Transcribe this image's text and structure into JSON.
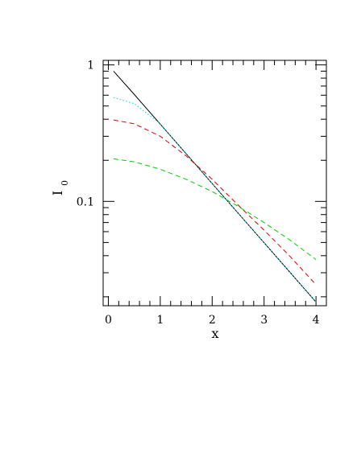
{
  "chart_data": {
    "type": "line",
    "title": "",
    "xlabel": "x",
    "ylabel": "I",
    "ylabel_subscript": "0",
    "xlim": [
      -0.1,
      4.2
    ],
    "ylim": [
      0.0172,
      1.08
    ],
    "yscale": "log",
    "grid": false,
    "x_ticks": [
      0,
      1,
      2,
      3,
      4
    ],
    "x_tick_labels": [
      "0",
      "1",
      "2",
      "3",
      "4"
    ],
    "y_tick_labels_shown": [
      {
        "value": 1,
        "label": "1"
      },
      {
        "value": 0.1,
        "label": "0.1"
      }
    ],
    "series": [
      {
        "color": "#000000",
        "style": "solid",
        "x": [
          0.1,
          0.5,
          1.0,
          1.5,
          2.0,
          2.5,
          3.0,
          3.5,
          4.0
        ],
        "y": [
          0.9,
          0.607,
          0.368,
          0.223,
          0.135,
          0.082,
          0.0498,
          0.0302,
          0.0183
        ]
      },
      {
        "color": "#00d8d8",
        "style": "dotted",
        "x": [
          0.1,
          0.5,
          1.0,
          1.5,
          1.8,
          2.0,
          2.5,
          3.0,
          3.5,
          4.0
        ],
        "y": [
          0.577,
          0.52,
          0.37,
          0.222,
          0.165,
          0.135,
          0.082,
          0.0498,
          0.0302,
          0.0183
        ]
      },
      {
        "color": "#dd0000",
        "style": "dashed",
        "x": [
          0.1,
          0.5,
          1.0,
          1.5,
          2.0,
          2.5,
          3.0,
          3.5,
          4.0
        ],
        "y": [
          0.395,
          0.37,
          0.3,
          0.215,
          0.145,
          0.094,
          0.0615,
          0.0395,
          0.0245
        ]
      },
      {
        "color": "#00cc00",
        "style": "dashed",
        "x": [
          0.1,
          0.5,
          1.0,
          1.5,
          2.0,
          2.5,
          3.0,
          3.5,
          4.0
        ],
        "y": [
          0.205,
          0.195,
          0.172,
          0.145,
          0.118,
          0.092,
          0.07,
          0.052,
          0.0375
        ]
      }
    ]
  }
}
